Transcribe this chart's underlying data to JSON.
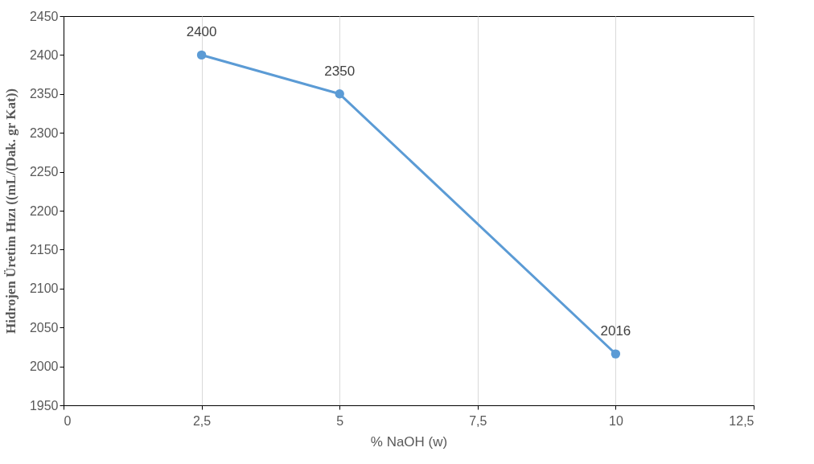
{
  "chart_data": {
    "type": "line",
    "xlabel": "% NaOH (w)",
    "ylabel": "Hidrojen Üretim Hızı ((mL/(Dak. gr Kat))",
    "x": [
      2.5,
      5,
      10
    ],
    "series": [
      {
        "color": "#5b9bd5",
        "values": [
          2400,
          2350,
          2016
        ]
      }
    ],
    "xlim": [
      0,
      12.5
    ],
    "xticks": [
      0,
      {
        "value": 2.5,
        "label": "2,5"
      },
      5,
      {
        "value": 7.5,
        "label": "7,5"
      },
      10,
      {
        "value": 12.5,
        "label": "12,5"
      }
    ],
    "ylim": [
      1950,
      2450
    ],
    "yticks": [
      1950,
      2000,
      2050,
      2100,
      2150,
      2200,
      2250,
      2300,
      2350,
      2400,
      2450
    ],
    "grid": "x",
    "marker": "circle",
    "data_labels": true,
    "legend": false
  }
}
